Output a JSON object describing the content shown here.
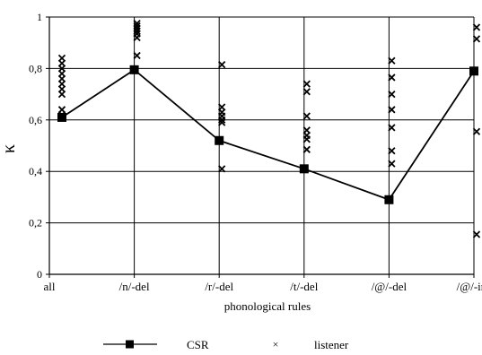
{
  "chart_data": {
    "type": "line",
    "title": "",
    "xlabel": "phonological rules",
    "ylabel": "κ",
    "ylim": [
      0,
      1
    ],
    "yticks": [
      "0",
      "0,2",
      "0,4",
      "0,6",
      "0,8",
      "1"
    ],
    "ytick_values": [
      0,
      0.2,
      0.4,
      0.6,
      0.8,
      1.0
    ],
    "grid": true,
    "legend_placement": "bottom",
    "categories": [
      "all",
      "/n/-del",
      "/r/-del",
      "/t/-del",
      "/@/-del",
      "/@/-ins"
    ],
    "series": [
      {
        "name": "CSR",
        "kind": "line-with-square-markers",
        "color": "#000000",
        "values": [
          0.61,
          0.795,
          0.52,
          0.41,
          0.29,
          0.79
        ]
      },
      {
        "name": "listener",
        "kind": "x-markers",
        "color": "#000000",
        "points": [
          [
            0.84,
            0.82,
            0.8,
            0.78,
            0.76,
            0.74,
            0.72,
            0.7,
            0.64,
            0.62
          ],
          [
            0.975,
            0.965,
            0.955,
            0.945,
            0.935,
            0.92,
            0.85
          ],
          [
            0.815,
            0.65,
            0.63,
            0.615,
            0.6,
            0.59,
            0.41
          ],
          [
            0.74,
            0.71,
            0.615,
            0.56,
            0.54,
            0.525,
            0.485
          ],
          [
            0.83,
            0.765,
            0.7,
            0.64,
            0.57,
            0.48,
            0.43
          ],
          [
            0.96,
            0.915,
            0.555,
            0.155
          ]
        ]
      }
    ]
  },
  "colors": {
    "grid": "#000000",
    "axis": "#000000",
    "ink": "#000000"
  }
}
